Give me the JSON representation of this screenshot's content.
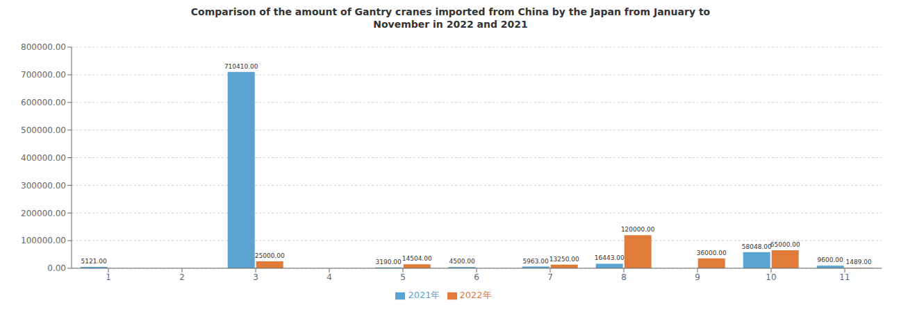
{
  "chart_data": {
    "type": "bar",
    "title": "Comparison of the amount of Gantry cranes imported from China by the Japan from January to\nNovember in 2022 and 2021",
    "categories": [
      "1",
      "2",
      "3",
      "4",
      "5",
      "6",
      "7",
      "8",
      "9",
      "10",
      "11"
    ],
    "series": [
      {
        "name": "2021年",
        "color": "#5ba3d0",
        "values": [
          5121,
          0,
          710410,
          0,
          3190,
          4500,
          5963,
          16443,
          0,
          58048,
          9600
        ],
        "value_labels": [
          "5121.00",
          null,
          "710410.00",
          null,
          "3190.00",
          "4500.00",
          "5963.00",
          "16443.00",
          null,
          "58048.00",
          "9600.00"
        ]
      },
      {
        "name": "2022年",
        "color": "#e07b39",
        "values": [
          0,
          0,
          25000,
          0,
          14504,
          0,
          13250,
          120000,
          36000,
          65000,
          1489
        ],
        "value_labels": [
          null,
          null,
          "25000.00",
          null,
          "14504.00",
          null,
          "13250.00",
          "120000.00",
          "36000.00",
          "65000.00",
          "1489.00"
        ]
      }
    ],
    "ylim": [
      0,
      800000
    ],
    "yticks": [
      {
        "value": 0,
        "label": "0.00"
      },
      {
        "value": 100000,
        "label": "100000.00"
      },
      {
        "value": 200000,
        "label": "200000.00"
      },
      {
        "value": 300000,
        "label": "300000.00"
      },
      {
        "value": 400000,
        "label": "400000.00"
      },
      {
        "value": 500000,
        "label": "500000.00"
      },
      {
        "value": 600000,
        "label": "600000.00"
      },
      {
        "value": 700000,
        "label": "700000.00"
      },
      {
        "value": 800000,
        "label": "800000.00"
      }
    ],
    "grid": true,
    "legend": "bottom",
    "data_labels": true
  }
}
